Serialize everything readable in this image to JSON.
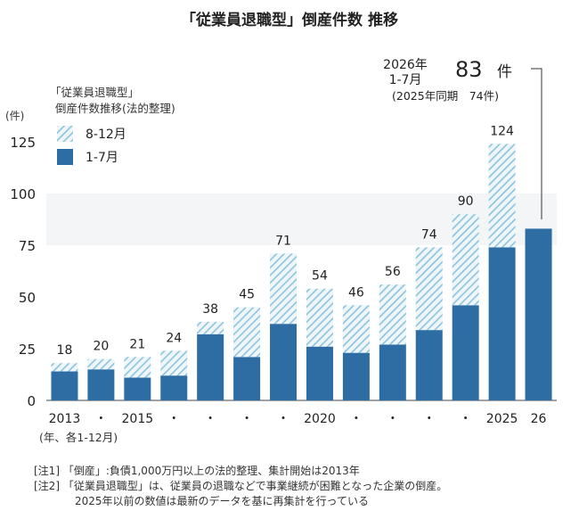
{
  "chart_data": {
    "type": "bar",
    "title": "「従業員退職型」倒産件数 推移",
    "legend_title_line1": "「従業員退職型」",
    "legend_title_line2": "倒産件数推移(法的整理)",
    "ylabel": "(件)",
    "xlabel": "(年、各1-12月)",
    "ylim": [
      0,
      130
    ],
    "yticks": [
      0,
      25,
      50,
      75,
      100,
      125
    ],
    "grid": false,
    "legend_position": "top-left",
    "categories": [
      "2013",
      "・",
      "2015",
      "・",
      "・",
      "・",
      "・",
      "2020",
      "・",
      "・",
      "・",
      "・",
      "2025",
      "26"
    ],
    "series": [
      {
        "name": "8-12月",
        "pattern": "hatched",
        "values": [
          4,
          5,
          10,
          12,
          6,
          24,
          34,
          28,
          23,
          29,
          40,
          44,
          50,
          null
        ]
      },
      {
        "name": "1-7月",
        "values": [
          14,
          15,
          11,
          12,
          32,
          21,
          37,
          26,
          23,
          27,
          34,
          46,
          74,
          83
        ]
      }
    ],
    "totals": [
      18,
      20,
      21,
      24,
      38,
      45,
      71,
      54,
      46,
      56,
      74,
      90,
      124,
      null
    ],
    "annotation": {
      "line1": "2026年",
      "line2": "1-7月",
      "line3": "(2025年同期　74件)",
      "big_value": "83",
      "big_unit": "件"
    },
    "colors": {
      "solid": "#2e6da4",
      "hatch": "#8ec3dd",
      "hatch_bg": "#eef6fa",
      "band": "#f3f5f7"
    }
  },
  "notes": {
    "note1": "[注1] 「倒産」:負債1,000万円以上の法的整理、集計開始は2013年",
    "note2": "[注2] 「従業員退職型」は、従業員の退職などで事業継続が困難となった企業の倒産。",
    "note3": "2025年以前の数値は最新のデータを基に再集計を行っている"
  }
}
